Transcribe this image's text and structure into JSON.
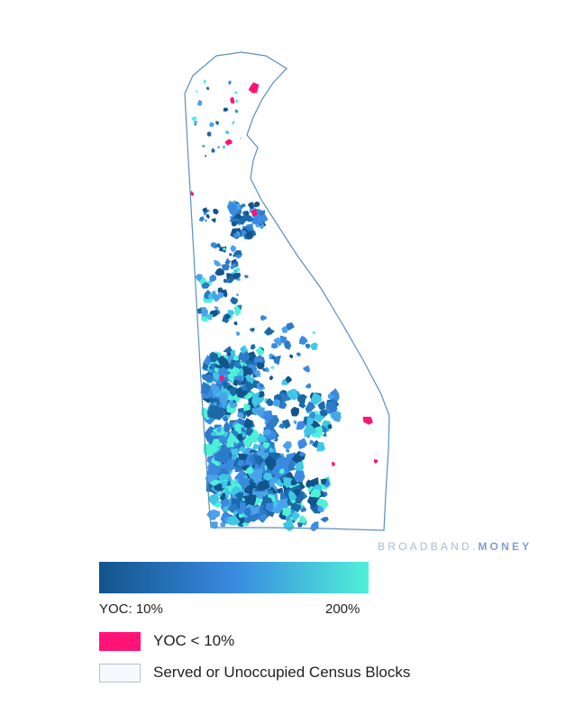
{
  "watermark": {
    "prefix": "BROADBAND.",
    "suffix": "MONEY"
  },
  "legend": {
    "gradient": {
      "min_label": "YOC: 10%",
      "max_label": "200%",
      "stops": [
        "#12548c",
        "#3a8ae0",
        "#4ff0d8"
      ]
    },
    "categories": [
      {
        "label": "YOC < 10%",
        "color": "#ff1476"
      },
      {
        "label": "Served or Unoccupied Census Blocks",
        "color": "#f7f9fe"
      }
    ]
  },
  "map": {
    "region": "Delaware",
    "outline_color": "#5b8fc0",
    "palette": [
      "#12548c",
      "#1b6aa8",
      "#2c7bc9",
      "#3a8ae0",
      "#4aa3ea",
      "#3fc7e6",
      "#4ff0d8",
      "#ff1476"
    ]
  }
}
